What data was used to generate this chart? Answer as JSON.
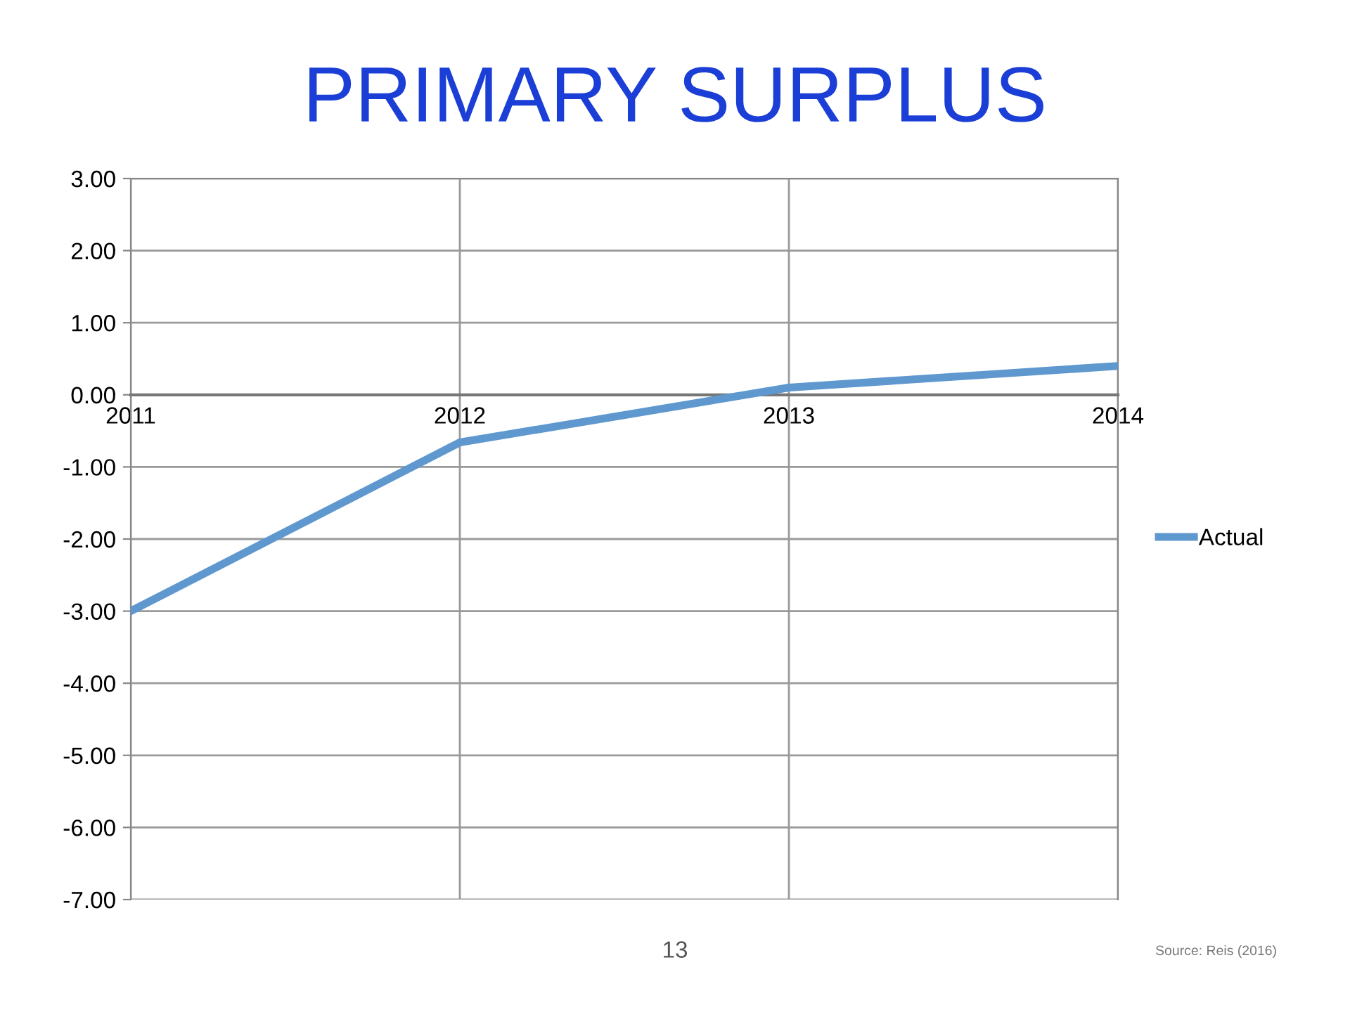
{
  "chart_data": {
    "type": "line",
    "title": "PRIMARY SURPLUS",
    "x": [
      2011,
      2012,
      2013,
      2014
    ],
    "series": [
      {
        "name": "Actual",
        "color": "#5e98cf",
        "values": [
          -3.0,
          -0.66,
          0.1,
          0.4
        ]
      }
    ],
    "xlim": [
      2011,
      2014
    ],
    "xticks": [
      2011,
      2012,
      2013,
      2014
    ],
    "ylim": [
      -7,
      3
    ],
    "yticks": [
      {
        "value": 3,
        "label": "3.00"
      },
      {
        "value": 2,
        "label": "2.00"
      },
      {
        "value": 1,
        "label": "1.00"
      },
      {
        "value": 0,
        "label": "0.00"
      },
      {
        "value": -1,
        "label": "-1.00"
      },
      {
        "value": -2,
        "label": "-2.00"
      },
      {
        "value": -3,
        "label": "-3.00"
      },
      {
        "value": -4,
        "label": "-4.00"
      },
      {
        "value": -5,
        "label": "-5.00"
      },
      {
        "value": -6,
        "label": "-6.00"
      },
      {
        "value": -7,
        "label": "-7.00"
      }
    ],
    "grid": true,
    "legend": "right",
    "marker": "none",
    "line_style": "solid",
    "annotations": [
      "13",
      "Source: Reis (2016)"
    ]
  }
}
